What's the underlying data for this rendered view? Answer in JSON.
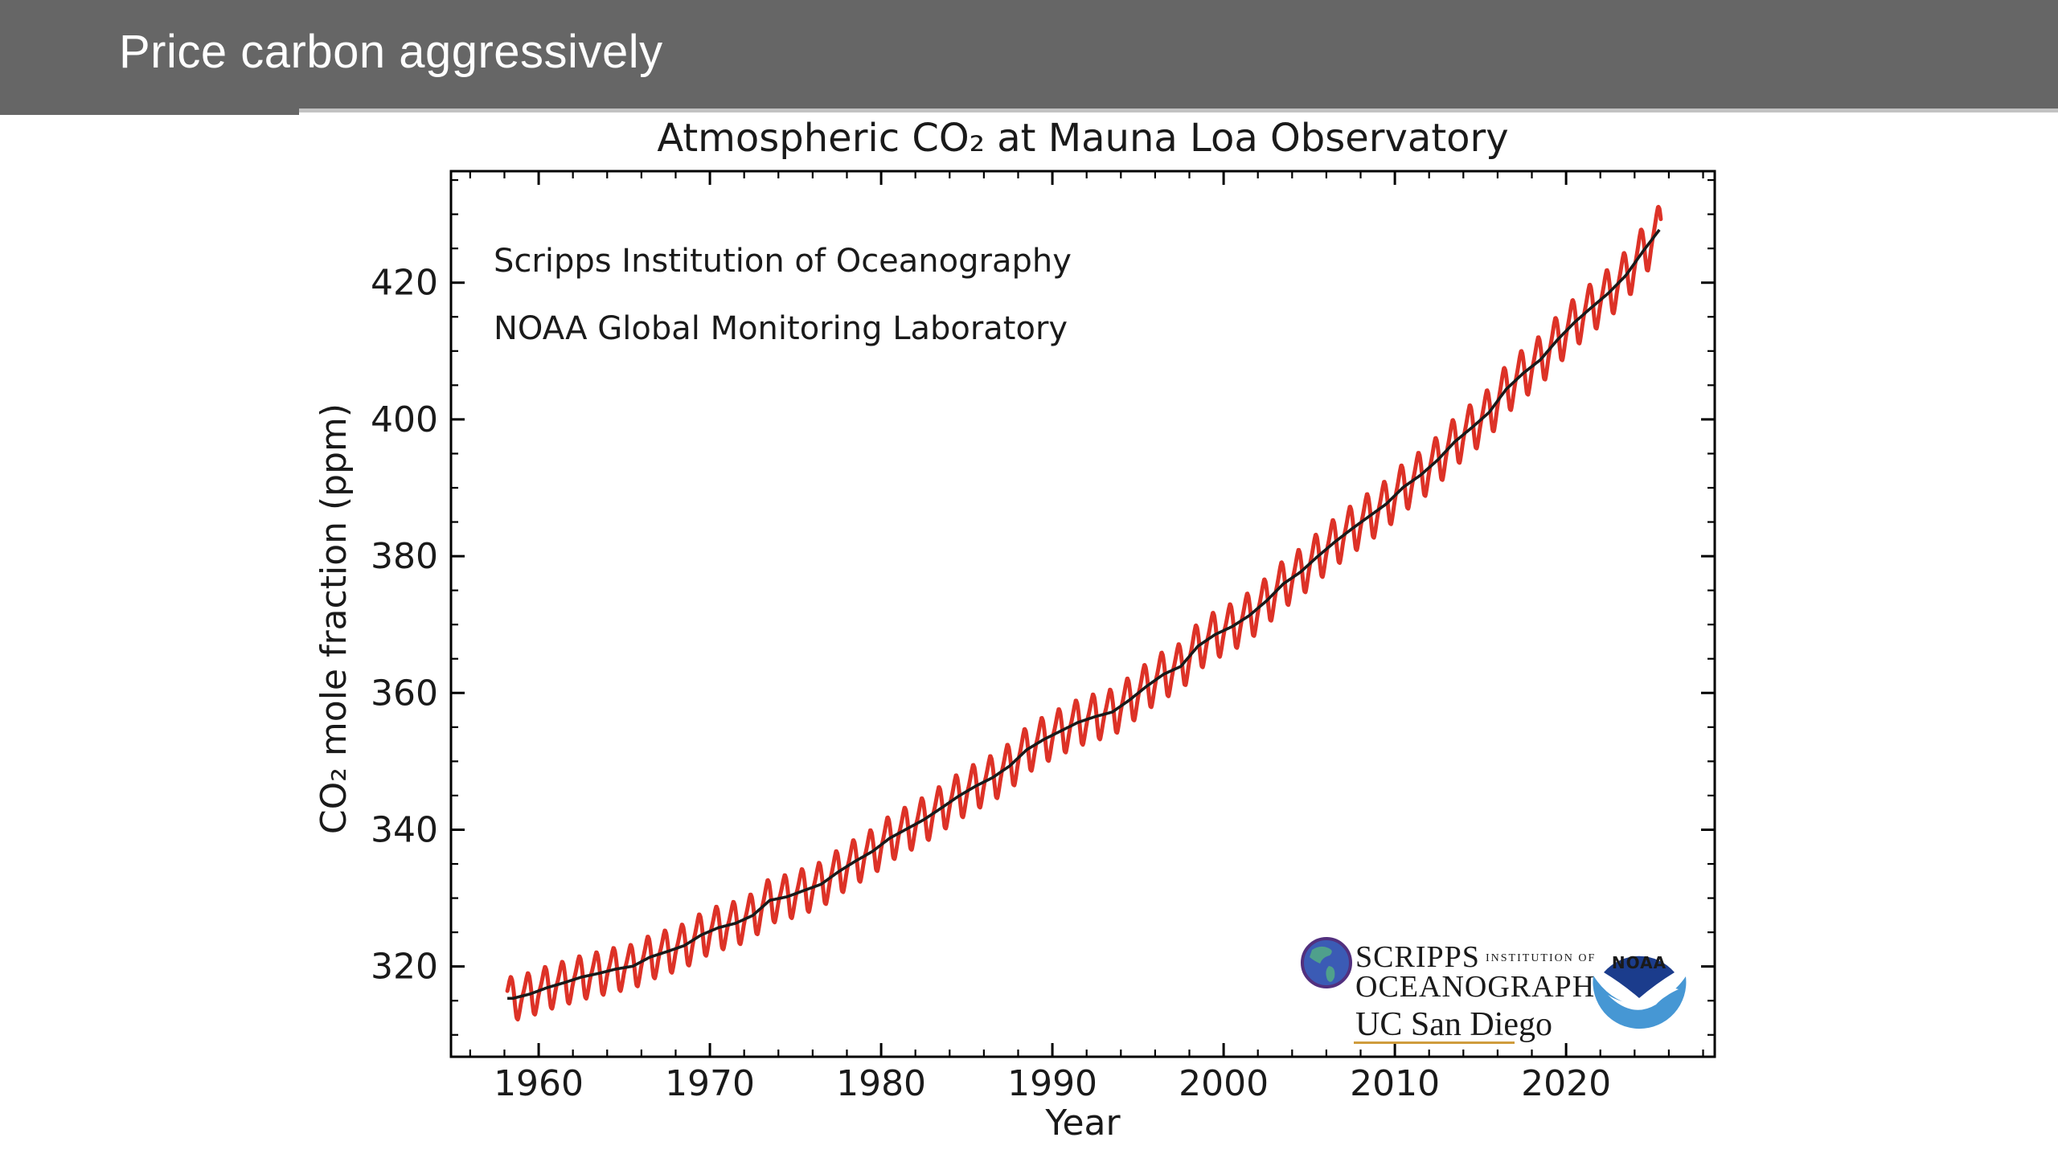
{
  "slide": {
    "title": "Price carbon aggressively",
    "title_bar_color": "#666666",
    "title_text_color": "#ffffff",
    "background_color": "#ffffff"
  },
  "chart": {
    "title": "Atmospheric CO₂ at Mauna Loa Observatory",
    "xlabel": "Year",
    "ylabel": "CO₂ mole fraction (ppm)",
    "annotations": [
      "Scripps Institution of Oceanography",
      "NOAA Global Monitoring Laboratory"
    ],
    "colors": {
      "monthly_line": "#dd3227",
      "trend_line": "#1a1a1a",
      "axis": "#000000"
    }
  },
  "chart_data": {
    "type": "line",
    "title": "Atmospheric CO₂ at Mauna Loa Observatory",
    "xlabel": "Year",
    "ylabel": "CO₂ mole fraction (ppm)",
    "xlim": [
      1954.88,
      2028.68
    ],
    "ylim": [
      306.8,
      436.3
    ],
    "xticks": [
      1960,
      1970,
      1980,
      1990,
      2000,
      2010,
      2020
    ],
    "xminor_step": 2,
    "yticks": [
      320,
      340,
      360,
      380,
      400,
      420
    ],
    "yminor_step": 5,
    "grid": false,
    "legend": "none",
    "series": [
      {
        "name": "monthly average",
        "color": "#dd3227",
        "style": "seasonal zigzag = trend + seasonal_cycle_ppm"
      },
      {
        "name": "deseasonalized trend",
        "color": "#1a1a1a"
      }
    ],
    "data_start_year": 1958.17,
    "data_end_year": 2025.54,
    "trend_start_year": 1958,
    "trend_ppm": [
      315.34,
      315.98,
      316.91,
      317.64,
      318.45,
      318.99,
      319.62,
      320.04,
      321.37,
      322.18,
      323.05,
      324.62,
      325.68,
      326.32,
      327.46,
      329.68,
      330.19,
      331.12,
      332.03,
      333.84,
      335.41,
      336.84,
      338.76,
      340.12,
      341.48,
      343.15,
      344.87,
      346.35,
      347.61,
      349.31,
      351.69,
      353.2,
      354.45,
      355.7,
      356.54,
      357.21,
      358.96,
      360.97,
      362.74,
      363.88,
      366.84,
      368.54,
      369.71,
      371.32,
      373.45,
      375.98,
      377.7,
      379.98,
      382.09,
      384.02,
      385.83,
      387.64,
      390.1,
      391.85,
      394.06,
      396.74,
      398.81,
      401.01,
      404.41,
      406.76,
      408.72,
      411.65,
      414.21,
      416.41,
      418.53,
      421.08,
      424.61,
      427.9
    ],
    "seasonal_cycle_ppm": [
      -0.1,
      0.6,
      1.5,
      2.5,
      3.2,
      2.6,
      1.0,
      -1.2,
      -3.0,
      -3.3,
      -2.3,
      -1.1
    ]
  },
  "logos": {
    "scripps": {
      "name_line": "SCRIPPS",
      "institution_of": "INSTITUTION OF",
      "oceanography_line": "OCEANOGRAPHY",
      "ucsd_line": "UC San Diego",
      "text_color": "#253f6f",
      "underline_color": "#cf9c3d",
      "globe_ocean": "#3b5bb5",
      "globe_ring": "#52307e",
      "globe_land": "#4fa08c"
    },
    "noaa": {
      "label": "NOAA",
      "dark_blue": "#1b3c8c",
      "light_blue": "#4697d4"
    }
  }
}
